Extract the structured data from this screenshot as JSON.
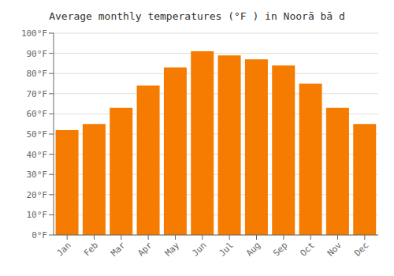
{
  "chart_data": {
    "type": "bar",
    "title": "Average monthly temperatures (°F ) in Noorā bā d",
    "categories": [
      "Jan",
      "Feb",
      "Mar",
      "Apr",
      "May",
      "Jun",
      "Jul",
      "Aug",
      "Sep",
      "Oct",
      "Nov",
      "Dec"
    ],
    "values": [
      52,
      55,
      63,
      74,
      83,
      91,
      89,
      87,
      84,
      75,
      63,
      55
    ],
    "color": "#F57C00",
    "ylim": [
      0,
      100
    ],
    "yticks": [
      {
        "value": 0,
        "label": "0°F"
      },
      {
        "value": 10,
        "label": "10°F"
      },
      {
        "value": 20,
        "label": "20°F"
      },
      {
        "value": 30,
        "label": "30°F"
      },
      {
        "value": 40,
        "label": "40°F"
      },
      {
        "value": 50,
        "label": "50°F"
      },
      {
        "value": 60,
        "label": "60°F"
      },
      {
        "value": 70,
        "label": "70°F"
      },
      {
        "value": 80,
        "label": "80°F"
      },
      {
        "value": 90,
        "label": "90°F"
      },
      {
        "value": 100,
        "label": "100°F"
      }
    ],
    "grid": true
  }
}
